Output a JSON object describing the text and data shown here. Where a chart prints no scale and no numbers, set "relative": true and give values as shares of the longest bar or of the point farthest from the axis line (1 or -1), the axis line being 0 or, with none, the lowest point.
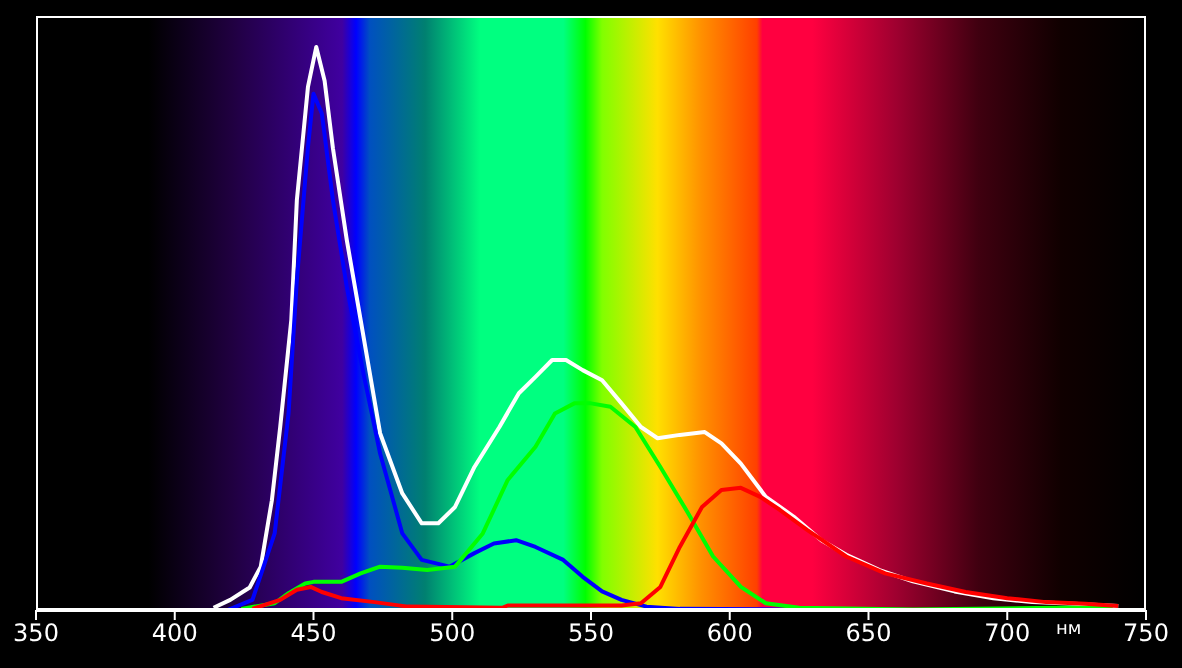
{
  "chart_data": {
    "type": "line",
    "relative": true,
    "xlabel": "нм",
    "xlim": [
      350,
      750
    ],
    "xticks": [
      350,
      400,
      450,
      500,
      550,
      600,
      650,
      700,
      750
    ],
    "series": [
      {
        "color": "#ffffff",
        "x": [
          414,
          420,
          427,
          431,
          435,
          438,
          442,
          444,
          448,
          451,
          454,
          457,
          462,
          467,
          474,
          482,
          489,
          495,
          501,
          508,
          517,
          524,
          530,
          536,
          541,
          547,
          554,
          561,
          568,
          574,
          582,
          591,
          597,
          604,
          613,
          623,
          633,
          642,
          654,
          666,
          681,
          695,
          709,
          724,
          740
        ],
        "values": [
          0.004,
          0.018,
          0.04,
          0.077,
          0.195,
          0.325,
          0.515,
          0.728,
          0.929,
          1.0,
          0.94,
          0.82,
          0.657,
          0.515,
          0.314,
          0.207,
          0.154,
          0.154,
          0.183,
          0.254,
          0.325,
          0.385,
          0.414,
          0.444,
          0.444,
          0.426,
          0.408,
          0.367,
          0.325,
          0.305,
          0.311,
          0.316,
          0.296,
          0.26,
          0.201,
          0.166,
          0.124,
          0.098,
          0.071,
          0.051,
          0.033,
          0.021,
          0.014,
          0.011,
          0.007
        ]
      },
      {
        "color": "#0000ff",
        "x": [
          419,
          428,
          436,
          441,
          444,
          448,
          450,
          453,
          457,
          462,
          468,
          474,
          482,
          489,
          499,
          508,
          515,
          523,
          530,
          540,
          547,
          554,
          561,
          570,
          582,
          618,
          666,
          738
        ],
        "values": [
          0,
          0.018,
          0.136,
          0.349,
          0.586,
          0.822,
          0.917,
          0.882,
          0.728,
          0.574,
          0.42,
          0.278,
          0.136,
          0.089,
          0.077,
          0.101,
          0.118,
          0.124,
          0.112,
          0.089,
          0.059,
          0.033,
          0.018,
          0.006,
          0.002,
          0.001,
          0,
          0
        ]
      },
      {
        "color": "#00ff00",
        "x": [
          424,
          436,
          441,
          447,
          450,
          460,
          467,
          474,
          482,
          491,
          501,
          511,
          520,
          530,
          537,
          544,
          550,
          557,
          566,
          575,
          585,
          594,
          604,
          613,
          625,
          666,
          719,
          738
        ],
        "values": [
          0.002,
          0.012,
          0.03,
          0.047,
          0.05,
          0.05,
          0.065,
          0.077,
          0.075,
          0.071,
          0.077,
          0.136,
          0.231,
          0.29,
          0.349,
          0.367,
          0.367,
          0.361,
          0.325,
          0.254,
          0.172,
          0.095,
          0.041,
          0.012,
          0.004,
          0.001,
          0.004,
          0.004
        ]
      },
      {
        "color": "#ff0000",
        "x": [
          428,
          438,
          444,
          449,
          453,
          460,
          472,
          484,
          518,
          520,
          554,
          561,
          568,
          575,
          582,
          590,
          597,
          604,
          611,
          618,
          628,
          642,
          656,
          671,
          685,
          700,
          714,
          728,
          740
        ],
        "values": [
          0.002,
          0.018,
          0.036,
          0.041,
          0.032,
          0.021,
          0.014,
          0.006,
          0.004,
          0.008,
          0.008,
          0.008,
          0.012,
          0.041,
          0.112,
          0.183,
          0.213,
          0.217,
          0.201,
          0.178,
          0.142,
          0.095,
          0.065,
          0.047,
          0.032,
          0.021,
          0.014,
          0.011,
          0.007
        ]
      }
    ]
  }
}
